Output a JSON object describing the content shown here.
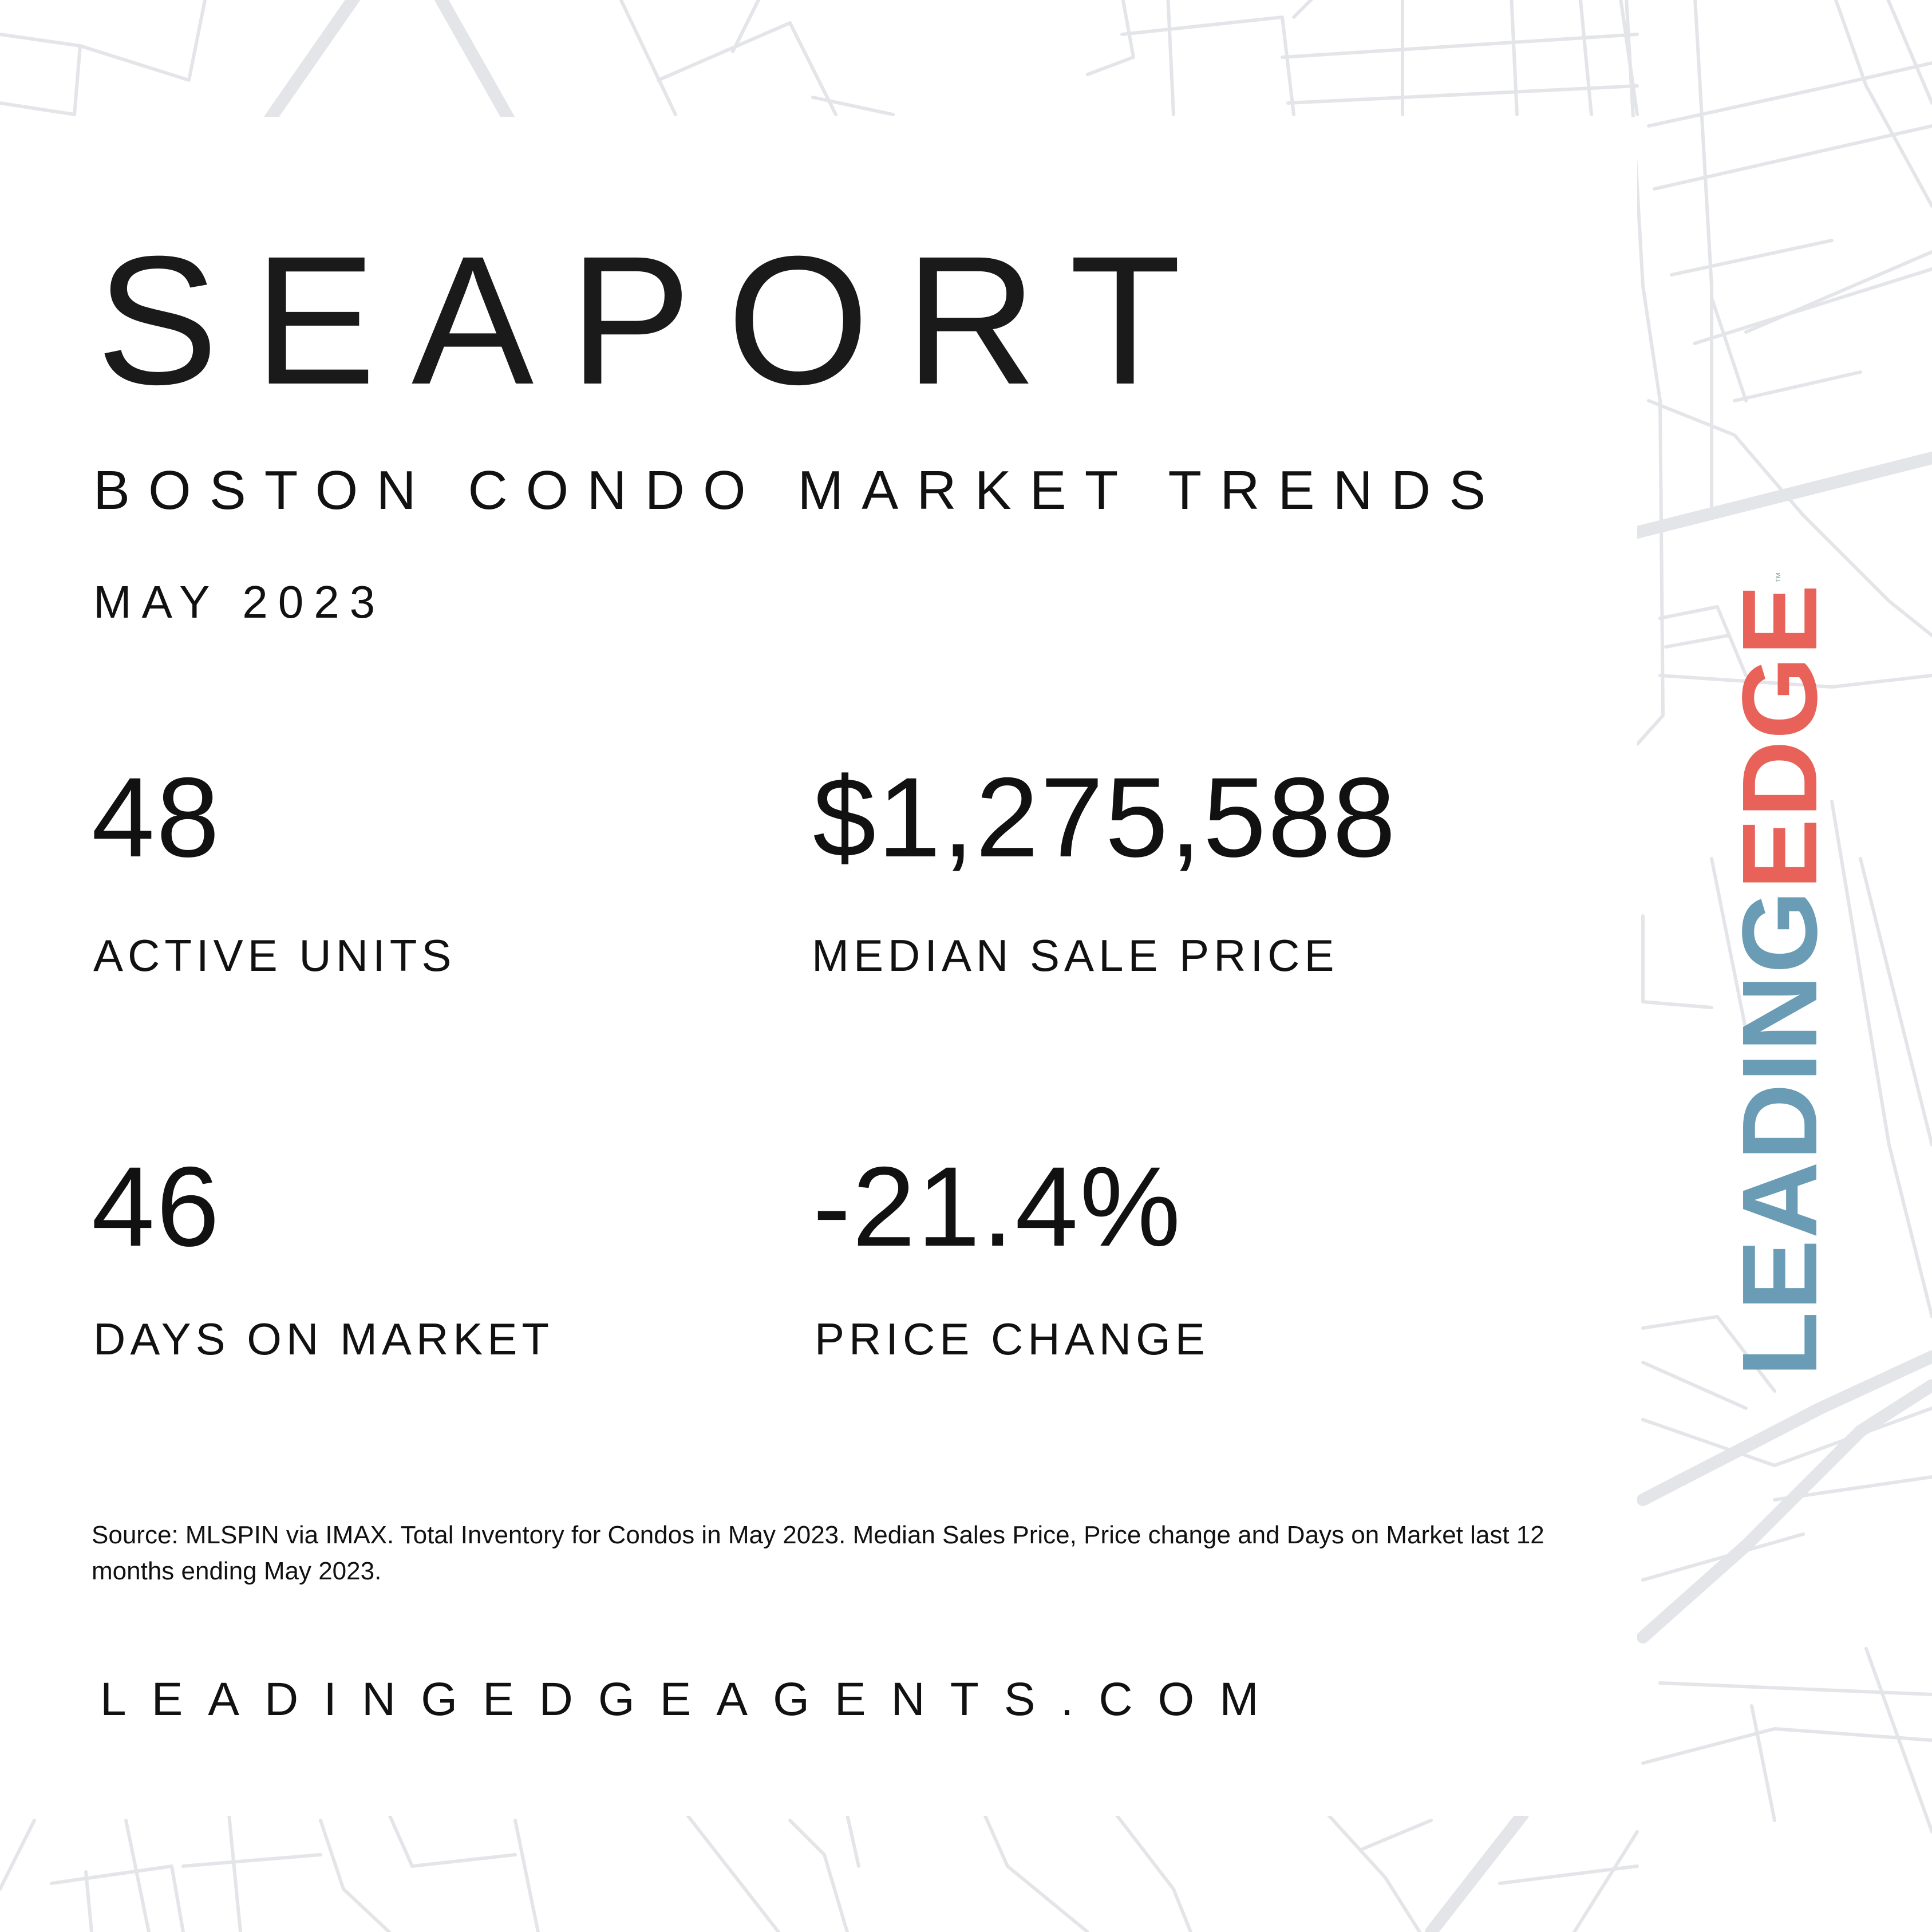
{
  "header": {
    "title": "SEAPORT",
    "subtitle": "BOSTON CONDO MARKET TRENDS",
    "date": "MAY 2023"
  },
  "stats": [
    {
      "value": "48",
      "label": "ACTIVE UNITS"
    },
    {
      "value": "$1,275,588",
      "label": "MEDIAN SALE PRICE"
    },
    {
      "value": "46",
      "label": "DAYS ON MARKET"
    },
    {
      "value": "-21.4%",
      "label": "PRICE CHANGE"
    }
  ],
  "footer": {
    "source": "Source: MLSPIN via IMAX. Total Inventory for Condos in May 2023. Median Sales Price, Price change and Days on Market last 12 months ending May 2023.",
    "website": "LEADINGEDGEAGENTS.COM"
  },
  "logo": {
    "part1": "LEADING",
    "part2": "EDGE",
    "trademark": "™",
    "color_leading": "#6a9cb6",
    "color_edge": "#e8625a"
  },
  "colors": {
    "background": "#ffffff",
    "map_lines": "#e3e5e8",
    "text": "#111111"
  }
}
